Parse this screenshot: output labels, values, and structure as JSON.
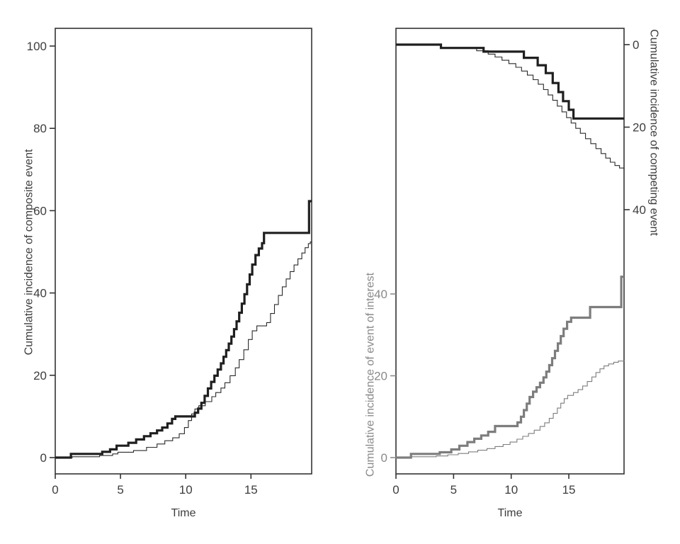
{
  "figure": {
    "background": "#ffffff",
    "text_color": "#3d3d3d",
    "gray_text_color": "#8a8a8a",
    "black_line_color": "#1f1f1f",
    "gray_line_color": "#7d7d7d",
    "frame_color": "#333333"
  },
  "chart_data": [
    {
      "type": "line",
      "line_style": "step-after",
      "panel": "left",
      "title": "",
      "xlabel": "Time",
      "ylabel": "Cumulative incidence of composite event",
      "xlim": [
        0,
        19.67
      ],
      "ylim": [
        0,
        104
      ],
      "xticks": [
        0,
        5,
        10,
        15
      ],
      "yticks": [
        0,
        20,
        40,
        60,
        80,
        100
      ],
      "grid": false,
      "legend": "none",
      "series": [
        {
          "name": "composite-event-thick-curve",
          "color": "#1f1f1f",
          "stroke_width": 3.2,
          "points": [
            [
              0,
              0
            ],
            [
              1.2,
              0.9
            ],
            [
              3.6,
              1.4
            ],
            [
              4.2,
              2.0
            ],
            [
              4.7,
              2.9
            ],
            [
              5.6,
              3.6
            ],
            [
              6.2,
              4.4
            ],
            [
              6.8,
              5.2
            ],
            [
              7.3,
              5.9
            ],
            [
              7.8,
              6.6
            ],
            [
              8.2,
              7.3
            ],
            [
              8.6,
              8.3
            ],
            [
              8.95,
              9.4
            ],
            [
              9.2,
              10.0
            ],
            [
              10.7,
              10.9
            ],
            [
              10.95,
              11.9
            ],
            [
              11.2,
              13.3
            ],
            [
              11.45,
              15.0
            ],
            [
              11.7,
              16.8
            ],
            [
              11.95,
              18.4
            ],
            [
              12.2,
              19.9
            ],
            [
              12.45,
              21.4
            ],
            [
              12.7,
              22.9
            ],
            [
              12.9,
              24.5
            ],
            [
              13.1,
              26.1
            ],
            [
              13.3,
              27.7
            ],
            [
              13.5,
              29.4
            ],
            [
              13.7,
              31.2
            ],
            [
              13.9,
              33.1
            ],
            [
              14.1,
              35.2
            ],
            [
              14.3,
              37.4
            ],
            [
              14.5,
              39.7
            ],
            [
              14.7,
              42.1
            ],
            [
              14.9,
              44.5
            ],
            [
              15.1,
              46.9
            ],
            [
              15.35,
              49.2
            ],
            [
              15.6,
              50.8
            ],
            [
              15.85,
              52.1
            ],
            [
              16.0,
              54.6
            ],
            [
              19.45,
              62.3
            ],
            [
              19.67,
              62.3
            ]
          ]
        },
        {
          "name": "composite-event-thin-curve",
          "color": "#2a2a2a",
          "stroke_width": 1.1,
          "points": [
            [
              0,
              0
            ],
            [
              1.3,
              0.2
            ],
            [
              3.4,
              0.5
            ],
            [
              4.4,
              0.9
            ],
            [
              4.8,
              1.3
            ],
            [
              6.0,
              1.7
            ],
            [
              7.0,
              2.5
            ],
            [
              7.8,
              3.3
            ],
            [
              8.4,
              4.1
            ],
            [
              9.0,
              4.8
            ],
            [
              9.5,
              5.8
            ],
            [
              9.9,
              7.3
            ],
            [
              10.2,
              9.0
            ],
            [
              10.45,
              10.6
            ],
            [
              10.7,
              11.8
            ],
            [
              11.0,
              12.6
            ],
            [
              11.5,
              13.6
            ],
            [
              12.0,
              14.8
            ],
            [
              12.3,
              15.8
            ],
            [
              12.7,
              16.9
            ],
            [
              13.0,
              18.2
            ],
            [
              13.4,
              19.9
            ],
            [
              13.8,
              21.8
            ],
            [
              14.1,
              23.8
            ],
            [
              14.45,
              26.2
            ],
            [
              14.8,
              28.7
            ],
            [
              15.1,
              30.8
            ],
            [
              15.45,
              32.0
            ],
            [
              16.2,
              32.8
            ],
            [
              16.5,
              35.0
            ],
            [
              16.8,
              37.2
            ],
            [
              17.1,
              39.4
            ],
            [
              17.4,
              41.5
            ],
            [
              17.7,
              43.4
            ],
            [
              18.0,
              45.2
            ],
            [
              18.3,
              46.8
            ],
            [
              18.6,
              48.3
            ],
            [
              18.9,
              49.7
            ],
            [
              19.15,
              51.0
            ],
            [
              19.4,
              52.0
            ],
            [
              19.55,
              52.4
            ],
            [
              19.67,
              52.4
            ]
          ]
        }
      ]
    },
    {
      "type": "line",
      "line_style": "step-after",
      "panel": "right",
      "title": "",
      "xlabel": "Time",
      "ylabel_left": "Cumulative incidence of event of interest",
      "ylabel_right": "Cumulative incidence of competing event",
      "xlim": [
        0,
        19.79
      ],
      "xticks": [
        0,
        5,
        10,
        15
      ],
      "left_axis": {
        "ticks": [
          0,
          20,
          40
        ],
        "orientation": "increases upward from bottom",
        "color": "#8a8a8a"
      },
      "right_axis": {
        "ticks": [
          0,
          20,
          40
        ],
        "orientation": "increases downward from top",
        "color": "#3d3d3d"
      },
      "grid": false,
      "legend": "none",
      "series": [
        {
          "name": "event-of-interest-thick-curve",
          "axis": "left",
          "color": "#7d7d7d",
          "stroke_width": 3.2,
          "points": [
            [
              0,
              0
            ],
            [
              1.3,
              0.9
            ],
            [
              3.8,
              1.3
            ],
            [
              4.8,
              2.0
            ],
            [
              5.5,
              2.9
            ],
            [
              6.2,
              3.8
            ],
            [
              6.8,
              4.6
            ],
            [
              7.4,
              5.4
            ],
            [
              8.0,
              6.3
            ],
            [
              8.6,
              7.7
            ],
            [
              10.55,
              8.6
            ],
            [
              10.85,
              10.0
            ],
            [
              11.1,
              11.6
            ],
            [
              11.35,
              13.2
            ],
            [
              11.6,
              14.8
            ],
            [
              11.9,
              16.1
            ],
            [
              12.2,
              17.2
            ],
            [
              12.5,
              18.3
            ],
            [
              12.8,
              19.6
            ],
            [
              13.05,
              21.0
            ],
            [
              13.3,
              22.6
            ],
            [
              13.55,
              24.3
            ],
            [
              13.8,
              26.1
            ],
            [
              14.05,
              27.9
            ],
            [
              14.3,
              29.7
            ],
            [
              14.55,
              31.5
            ],
            [
              14.85,
              33.2
            ],
            [
              15.2,
              34.2
            ],
            [
              16.85,
              36.8
            ],
            [
              19.55,
              44.2
            ],
            [
              19.79,
              44.2
            ]
          ]
        },
        {
          "name": "event-of-interest-thin-curve",
          "axis": "left",
          "color": "#7d7d7d",
          "stroke_width": 1.1,
          "points": [
            [
              0,
              0
            ],
            [
              1.3,
              0.2
            ],
            [
              3.5,
              0.4
            ],
            [
              4.5,
              0.7
            ],
            [
              5.4,
              1.0
            ],
            [
              6.3,
              1.4
            ],
            [
              7.1,
              1.8
            ],
            [
              7.9,
              2.2
            ],
            [
              8.6,
              2.7
            ],
            [
              9.3,
              3.2
            ],
            [
              9.9,
              3.8
            ],
            [
              10.5,
              4.5
            ],
            [
              11.0,
              5.2
            ],
            [
              11.5,
              5.9
            ],
            [
              12.0,
              6.7
            ],
            [
              12.5,
              7.6
            ],
            [
              12.9,
              8.5
            ],
            [
              13.3,
              9.6
            ],
            [
              13.65,
              10.8
            ],
            [
              14.0,
              12.1
            ],
            [
              14.3,
              13.3
            ],
            [
              14.6,
              14.4
            ],
            [
              14.9,
              15.2
            ],
            [
              15.4,
              15.9
            ],
            [
              15.8,
              16.6
            ],
            [
              16.2,
              17.5
            ],
            [
              16.6,
              18.6
            ],
            [
              17.0,
              19.7
            ],
            [
              17.35,
              20.8
            ],
            [
              17.7,
              21.7
            ],
            [
              18.05,
              22.4
            ],
            [
              18.45,
              22.9
            ],
            [
              18.9,
              23.3
            ],
            [
              19.3,
              23.6
            ],
            [
              19.79,
              23.7
            ]
          ]
        },
        {
          "name": "competing-event-thick-curve",
          "axis": "right",
          "color": "#1f1f1f",
          "stroke_width": 3.2,
          "points": [
            [
              0,
              0
            ],
            [
              3.9,
              0.8
            ],
            [
              7.6,
              1.7
            ],
            [
              11.1,
              3.2
            ],
            [
              12.3,
              5.0
            ],
            [
              13.0,
              6.9
            ],
            [
              13.6,
              9.3
            ],
            [
              14.1,
              11.5
            ],
            [
              14.5,
              13.7
            ],
            [
              15.0,
              15.8
            ],
            [
              15.4,
              17.9
            ],
            [
              19.79,
              17.9
            ]
          ]
        },
        {
          "name": "competing-event-thin-curve",
          "axis": "right",
          "color": "#2a2a2a",
          "stroke_width": 1.1,
          "points": [
            [
              0,
              0
            ],
            [
              3.9,
              0.8
            ],
            [
              7.0,
              1.5
            ],
            [
              8.0,
              2.3
            ],
            [
              8.6,
              3.0
            ],
            [
              9.2,
              3.8
            ],
            [
              9.8,
              4.6
            ],
            [
              10.4,
              5.5
            ],
            [
              10.9,
              6.4
            ],
            [
              11.4,
              7.4
            ],
            [
              11.9,
              8.5
            ],
            [
              12.35,
              9.6
            ],
            [
              12.8,
              10.9
            ],
            [
              13.2,
              12.2
            ],
            [
              13.6,
              13.5
            ],
            [
              14.0,
              14.9
            ],
            [
              14.4,
              16.3
            ],
            [
              14.8,
              17.7
            ],
            [
              15.2,
              19.0
            ],
            [
              15.6,
              20.3
            ],
            [
              16.0,
              21.5
            ],
            [
              16.45,
              22.8
            ],
            [
              16.9,
              24.0
            ],
            [
              17.35,
              25.2
            ],
            [
              17.8,
              26.4
            ],
            [
              18.2,
              27.5
            ],
            [
              18.6,
              28.5
            ],
            [
              19.0,
              29.3
            ],
            [
              19.4,
              29.9
            ],
            [
              19.79,
              30.2
            ]
          ]
        }
      ]
    }
  ]
}
